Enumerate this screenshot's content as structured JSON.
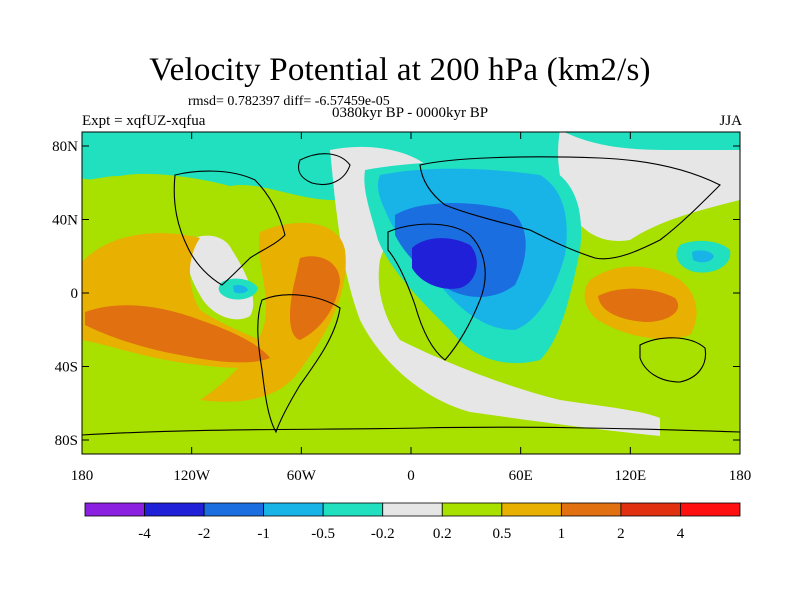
{
  "title": "Velocity Potential at 200 hPa (km2/s)",
  "stats": "rmsd= 0.782397 diff= -6.57459e-05",
  "left_label": "Expt = xqfUZ-xqfua",
  "center_label": "0380kyr BP - 0000kyr BP",
  "right_label": "JJA",
  "lat_ticks": [
    "80N",
    "40N",
    "0",
    "40S",
    "80S"
  ],
  "lon_ticks": [
    "180",
    "120W",
    "60W",
    "0",
    "60E",
    "120E",
    "180"
  ],
  "colorbar": {
    "labels": [
      "-4",
      "-2",
      "-1",
      "-0.5",
      "-0.2",
      "0.2",
      "0.5",
      "1",
      "2",
      "4"
    ],
    "colors": [
      "#8b20e0",
      "#2020d8",
      "#1a6ee0",
      "#18b4e8",
      "#20e0c0",
      "#e6e6e6",
      "#a8e000",
      "#e8b000",
      "#e07010",
      "#e03010",
      "#ff1010"
    ]
  },
  "colors": {
    "field_bg": "#a8e000",
    "band_top": "#20e0c0",
    "neutral": "#e6e6e6"
  }
}
